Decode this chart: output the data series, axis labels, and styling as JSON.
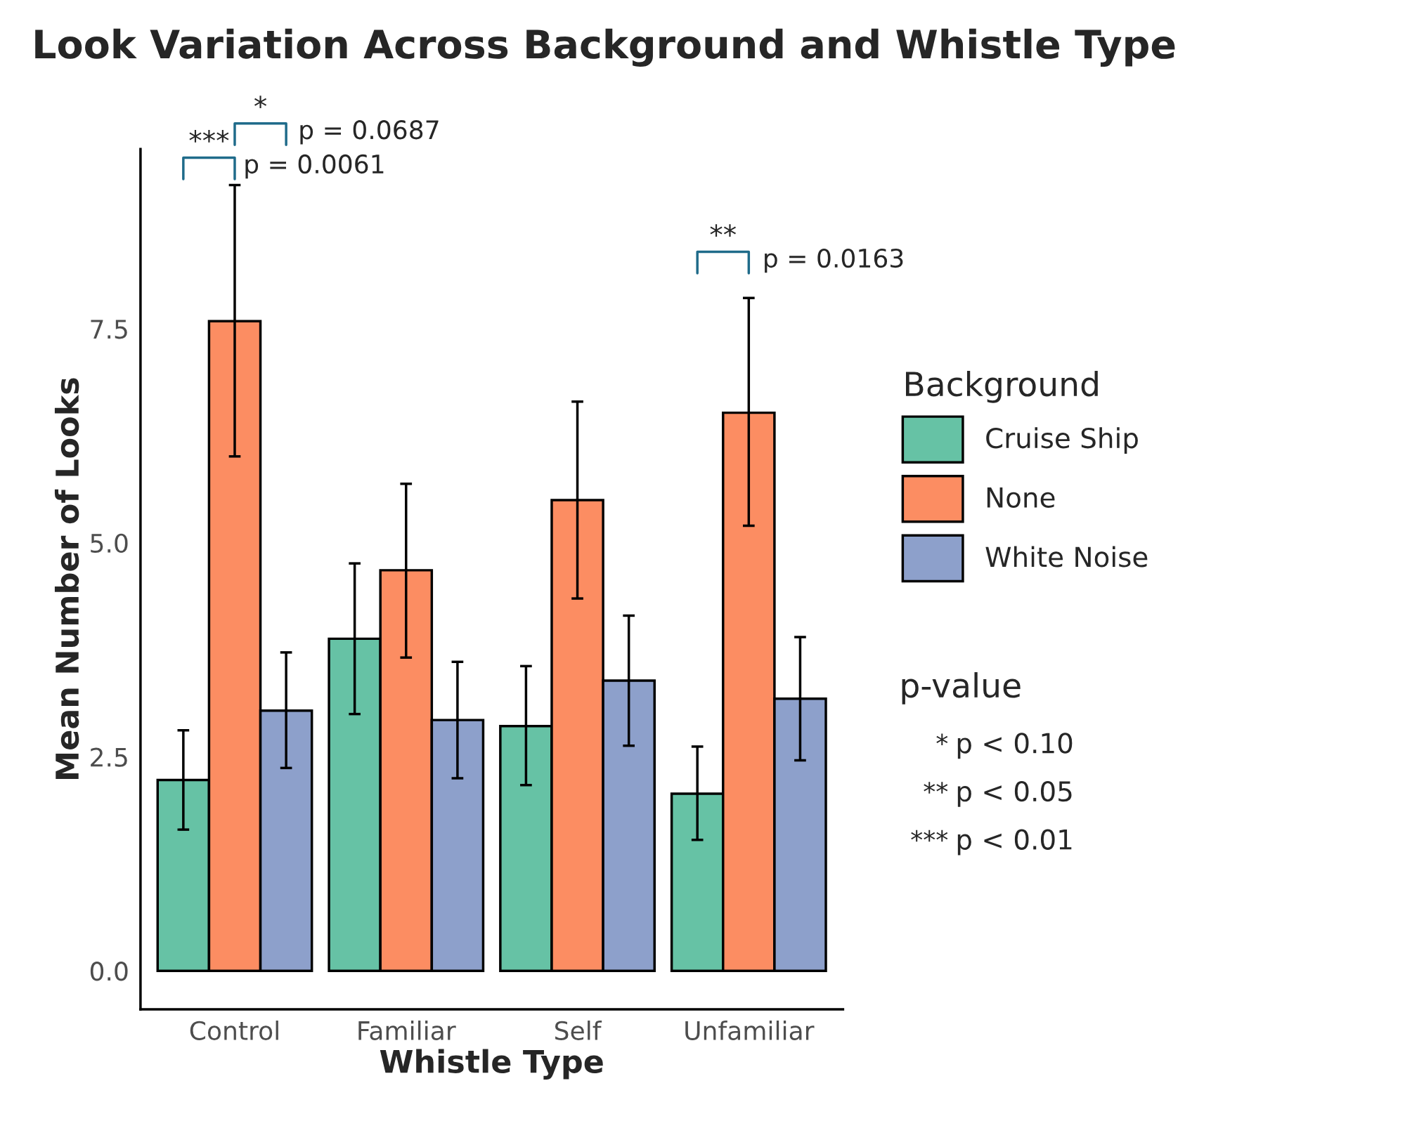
{
  "chart_data": {
    "type": "bar",
    "title": "Look Variation Across Background and Whistle Type",
    "xlabel": "Whistle Type",
    "ylabel": "Mean Number of Looks",
    "legend_title": "Background",
    "legend": "right",
    "grid": false,
    "categories": [
      "Control",
      "Familiar",
      "Self",
      "Unfamiliar"
    ],
    "ylim": [
      -0.45,
      9.6
    ],
    "yticks": [
      {
        "value": 0,
        "label": "0.0"
      },
      {
        "value": 2.5,
        "label": "2.5"
      },
      {
        "value": 5,
        "label": "5.0"
      },
      {
        "value": 7.5,
        "label": "7.5"
      }
    ],
    "series": [
      {
        "name": "Cruise Ship",
        "color": "#66c2a5",
        "values": [
          2.23,
          3.88,
          2.86,
          2.07
        ],
        "errors": [
          [
            1.65,
            2.81
          ],
          [
            3.0,
            4.76
          ],
          [
            2.17,
            3.56
          ],
          [
            1.53,
            2.62
          ]
        ]
      },
      {
        "name": "None",
        "color": "#fc8d62",
        "values": [
          7.59,
          4.68,
          5.5,
          6.52
        ],
        "errors": [
          [
            6.01,
            9.18
          ],
          [
            3.66,
            5.69
          ],
          [
            4.35,
            6.65
          ],
          [
            5.2,
            7.86
          ]
        ]
      },
      {
        "name": "White Noise",
        "color": "#8da0cb",
        "values": [
          3.04,
          2.93,
          3.39,
          3.18
        ],
        "errors": [
          [
            2.37,
            3.72
          ],
          [
            2.25,
            3.61
          ],
          [
            2.63,
            4.15
          ],
          [
            2.46,
            3.9
          ]
        ]
      }
    ],
    "annotations": [
      "***",
      "p = 0.0061",
      "*",
      "p = 0.0687",
      "**",
      "p = 0.0163",
      "p-value",
      "*",
      "p < 0.10",
      "**",
      "p < 0.05",
      "***",
      "p < 0.01"
    ]
  }
}
